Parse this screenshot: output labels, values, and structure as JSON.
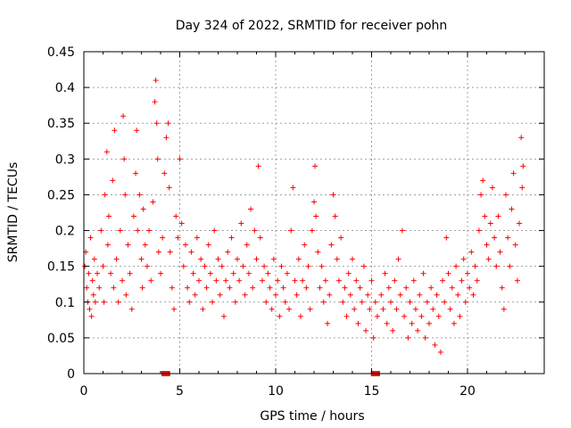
{
  "chart_data": {
    "type": "scatter",
    "title": "Day 324 of 2022, SRMTID for receiver pohn",
    "xlabel": "GPS time / hours",
    "ylabel": "SRMTID / TECUs",
    "xlim": [
      0,
      24
    ],
    "ylim": [
      0,
      0.45
    ],
    "xticks": [
      0,
      5,
      10,
      15,
      20
    ],
    "xtick_labels": [
      "0",
      "5",
      "10",
      "15",
      "20"
    ],
    "yticks": [
      0,
      0.05,
      0.1,
      0.15,
      0.2,
      0.25,
      0.3,
      0.35,
      0.4,
      0.45
    ],
    "ytick_labels": [
      "0",
      "0.05",
      "0.1",
      "0.15",
      "0.2",
      "0.25",
      "0.3",
      "0.35",
      "0.4",
      "0.45"
    ],
    "grid": true,
    "marker": "plus",
    "color": "#ff0000",
    "series": [
      {
        "name": "SRMTID",
        "points": [
          [
            0.05,
            0.15
          ],
          [
            0.1,
            0.17
          ],
          [
            0.15,
            0.12
          ],
          [
            0.2,
            0.1
          ],
          [
            0.25,
            0.14
          ],
          [
            0.3,
            0.09
          ],
          [
            0.35,
            0.19
          ],
          [
            0.4,
            0.08
          ],
          [
            0.45,
            0.13
          ],
          [
            0.5,
            0.11
          ],
          [
            0.55,
            0.16
          ],
          [
            0.6,
            0.1
          ],
          [
            0.7,
            0.14
          ],
          [
            0.8,
            0.12
          ],
          [
            0.9,
            0.2
          ],
          [
            1.0,
            0.15
          ],
          [
            1.05,
            0.1
          ],
          [
            1.1,
            0.25
          ],
          [
            1.2,
            0.31
          ],
          [
            1.25,
            0.18
          ],
          [
            1.3,
            0.22
          ],
          [
            1.4,
            0.14
          ],
          [
            1.5,
            0.27
          ],
          [
            1.55,
            0.12
          ],
          [
            1.6,
            0.34
          ],
          [
            1.7,
            0.16
          ],
          [
            1.8,
            0.1
          ],
          [
            1.9,
            0.2
          ],
          [
            2.0,
            0.13
          ],
          [
            2.05,
            0.36
          ],
          [
            2.1,
            0.3
          ],
          [
            2.15,
            0.25
          ],
          [
            2.2,
            0.11
          ],
          [
            2.3,
            0.18
          ],
          [
            2.4,
            0.14
          ],
          [
            2.5,
            0.09
          ],
          [
            2.6,
            0.22
          ],
          [
            2.7,
            0.28
          ],
          [
            2.75,
            0.34
          ],
          [
            2.8,
            0.2
          ],
          [
            2.9,
            0.25
          ],
          [
            3.0,
            0.16
          ],
          [
            3.05,
            0.12
          ],
          [
            3.1,
            0.23
          ],
          [
            3.2,
            0.18
          ],
          [
            3.3,
            0.15
          ],
          [
            3.4,
            0.2
          ],
          [
            3.5,
            0.13
          ],
          [
            3.6,
            0.24
          ],
          [
            3.7,
            0.38
          ],
          [
            3.75,
            0.41
          ],
          [
            3.8,
            0.35
          ],
          [
            3.85,
            0.3
          ],
          [
            3.9,
            0.17
          ],
          [
            4.0,
            0.14
          ],
          [
            4.1,
            0.19
          ],
          [
            4.2,
            0.28
          ],
          [
            4.3,
            0.33
          ],
          [
            4.4,
            0.35
          ],
          [
            4.45,
            0.26
          ],
          [
            4.5,
            0.17
          ],
          [
            4.6,
            0.12
          ],
          [
            4.7,
            0.09
          ],
          [
            4.8,
            0.22
          ],
          [
            4.9,
            0.19
          ],
          [
            5.0,
            0.3
          ],
          [
            5.1,
            0.21
          ],
          [
            5.2,
            0.15
          ],
          [
            5.3,
            0.18
          ],
          [
            5.4,
            0.12
          ],
          [
            5.5,
            0.1
          ],
          [
            5.6,
            0.17
          ],
          [
            5.7,
            0.14
          ],
          [
            5.8,
            0.11
          ],
          [
            5.9,
            0.19
          ],
          [
            6.0,
            0.13
          ],
          [
            6.1,
            0.16
          ],
          [
            6.2,
            0.09
          ],
          [
            6.3,
            0.15
          ],
          [
            6.4,
            0.12
          ],
          [
            6.5,
            0.18
          ],
          [
            6.6,
            0.14
          ],
          [
            6.7,
            0.1
          ],
          [
            6.8,
            0.2
          ],
          [
            6.9,
            0.13
          ],
          [
            7.0,
            0.16
          ],
          [
            7.1,
            0.11
          ],
          [
            7.2,
            0.15
          ],
          [
            7.3,
            0.08
          ],
          [
            7.4,
            0.13
          ],
          [
            7.5,
            0.17
          ],
          [
            7.6,
            0.12
          ],
          [
            7.7,
            0.19
          ],
          [
            7.8,
            0.14
          ],
          [
            7.9,
            0.1
          ],
          [
            8.0,
            0.16
          ],
          [
            8.1,
            0.13
          ],
          [
            8.2,
            0.21
          ],
          [
            8.3,
            0.15
          ],
          [
            8.4,
            0.11
          ],
          [
            8.5,
            0.18
          ],
          [
            8.6,
            0.14
          ],
          [
            8.7,
            0.23
          ],
          [
            8.8,
            0.12
          ],
          [
            8.9,
            0.2
          ],
          [
            9.0,
            0.16
          ],
          [
            9.1,
            0.29
          ],
          [
            9.2,
            0.19
          ],
          [
            9.3,
            0.13
          ],
          [
            9.4,
            0.15
          ],
          [
            9.5,
            0.1
          ],
          [
            9.6,
            0.14
          ],
          [
            9.7,
            0.12
          ],
          [
            9.8,
            0.09
          ],
          [
            9.9,
            0.16
          ],
          [
            10.0,
            0.11
          ],
          [
            10.1,
            0.13
          ],
          [
            10.2,
            0.08
          ],
          [
            10.3,
            0.15
          ],
          [
            10.4,
            0.12
          ],
          [
            10.5,
            0.1
          ],
          [
            10.6,
            0.14
          ],
          [
            10.7,
            0.09
          ],
          [
            10.8,
            0.2
          ],
          [
            10.9,
            0.26
          ],
          [
            11.0,
            0.13
          ],
          [
            11.1,
            0.11
          ],
          [
            11.2,
            0.16
          ],
          [
            11.3,
            0.08
          ],
          [
            11.4,
            0.13
          ],
          [
            11.5,
            0.18
          ],
          [
            11.6,
            0.12
          ],
          [
            11.7,
            0.15
          ],
          [
            11.8,
            0.09
          ],
          [
            11.9,
            0.2
          ],
          [
            12.0,
            0.24
          ],
          [
            12.05,
            0.29
          ],
          [
            12.1,
            0.22
          ],
          [
            12.2,
            0.17
          ],
          [
            12.3,
            0.12
          ],
          [
            12.4,
            0.15
          ],
          [
            12.5,
            0.1
          ],
          [
            12.6,
            0.13
          ],
          [
            12.7,
            0.07
          ],
          [
            12.8,
            0.11
          ],
          [
            12.9,
            0.18
          ],
          [
            13.0,
            0.25
          ],
          [
            13.1,
            0.22
          ],
          [
            13.2,
            0.16
          ],
          [
            13.3,
            0.13
          ],
          [
            13.4,
            0.19
          ],
          [
            13.5,
            0.1
          ],
          [
            13.6,
            0.12
          ],
          [
            13.7,
            0.08
          ],
          [
            13.8,
            0.14
          ],
          [
            13.9,
            0.11
          ],
          [
            14.0,
            0.16
          ],
          [
            14.1,
            0.09
          ],
          [
            14.2,
            0.13
          ],
          [
            14.3,
            0.07
          ],
          [
            14.4,
            0.12
          ],
          [
            14.5,
            0.1
          ],
          [
            14.6,
            0.15
          ],
          [
            14.7,
            0.06
          ],
          [
            14.8,
            0.11
          ],
          [
            14.9,
            0.09
          ],
          [
            15.0,
            0.13
          ],
          [
            15.1,
            0.05
          ],
          [
            15.2,
            0.1
          ],
          [
            15.3,
            0.08
          ],
          [
            15.5,
            0.11
          ],
          [
            15.6,
            0.09
          ],
          [
            15.7,
            0.14
          ],
          [
            15.8,
            0.07
          ],
          [
            15.9,
            0.12
          ],
          [
            16.0,
            0.1
          ],
          [
            16.1,
            0.06
          ],
          [
            16.2,
            0.13
          ],
          [
            16.3,
            0.09
          ],
          [
            16.4,
            0.16
          ],
          [
            16.5,
            0.11
          ],
          [
            16.6,
            0.2
          ],
          [
            16.7,
            0.08
          ],
          [
            16.8,
            0.12
          ],
          [
            16.9,
            0.05
          ],
          [
            17.0,
            0.1
          ],
          [
            17.1,
            0.07
          ],
          [
            17.2,
            0.13
          ],
          [
            17.3,
            0.09
          ],
          [
            17.4,
            0.06
          ],
          [
            17.5,
            0.11
          ],
          [
            17.6,
            0.08
          ],
          [
            17.7,
            0.14
          ],
          [
            17.8,
            0.05
          ],
          [
            17.9,
            0.1
          ],
          [
            18.0,
            0.07
          ],
          [
            18.1,
            0.12
          ],
          [
            18.2,
            0.09
          ],
          [
            18.3,
            0.04
          ],
          [
            18.4,
            0.11
          ],
          [
            18.5,
            0.08
          ],
          [
            18.6,
            0.03
          ],
          [
            18.7,
            0.13
          ],
          [
            18.8,
            0.1
          ],
          [
            18.9,
            0.19
          ],
          [
            19.0,
            0.14
          ],
          [
            19.1,
            0.09
          ],
          [
            19.2,
            0.12
          ],
          [
            19.3,
            0.07
          ],
          [
            19.4,
            0.15
          ],
          [
            19.5,
            0.11
          ],
          [
            19.6,
            0.08
          ],
          [
            19.7,
            0.13
          ],
          [
            19.8,
            0.16
          ],
          [
            19.9,
            0.1
          ],
          [
            20.0,
            0.14
          ],
          [
            20.1,
            0.12
          ],
          [
            20.2,
            0.17
          ],
          [
            20.3,
            0.11
          ],
          [
            20.4,
            0.15
          ],
          [
            20.5,
            0.13
          ],
          [
            20.6,
            0.2
          ],
          [
            20.7,
            0.25
          ],
          [
            20.8,
            0.27
          ],
          [
            20.9,
            0.22
          ],
          [
            21.0,
            0.18
          ],
          [
            21.1,
            0.16
          ],
          [
            21.2,
            0.21
          ],
          [
            21.3,
            0.26
          ],
          [
            21.4,
            0.19
          ],
          [
            21.5,
            0.15
          ],
          [
            21.6,
            0.22
          ],
          [
            21.7,
            0.17
          ],
          [
            21.8,
            0.12
          ],
          [
            21.9,
            0.09
          ],
          [
            22.0,
            0.25
          ],
          [
            22.1,
            0.19
          ],
          [
            22.2,
            0.15
          ],
          [
            22.3,
            0.23
          ],
          [
            22.4,
            0.28
          ],
          [
            22.5,
            0.18
          ],
          [
            22.6,
            0.13
          ],
          [
            22.7,
            0.21
          ],
          [
            22.8,
            0.33
          ],
          [
            22.85,
            0.26
          ],
          [
            22.9,
            0.29
          ]
        ]
      }
    ],
    "gap_markers_x": [
      4.18,
      4.36,
      15.1,
      15.3
    ],
    "gap_marker_y": 0
  }
}
